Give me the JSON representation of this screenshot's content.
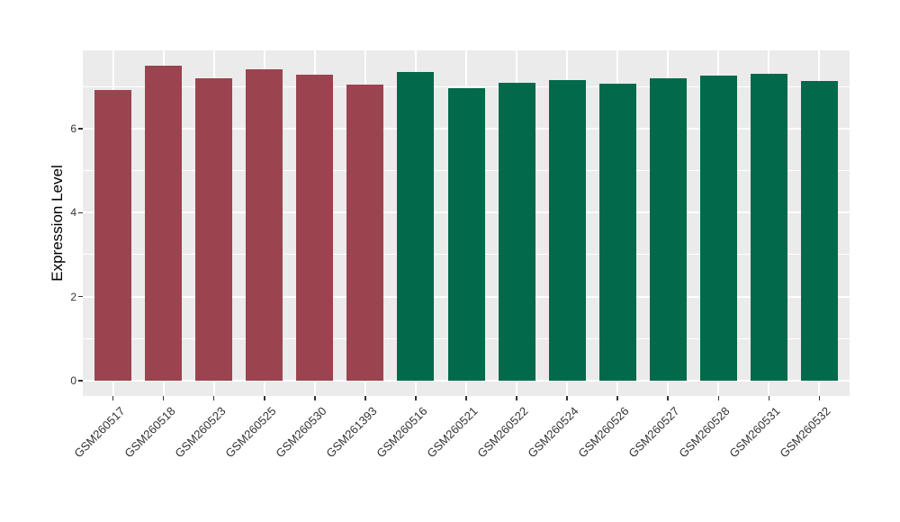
{
  "chart_data": {
    "type": "bar",
    "title": "",
    "xlabel": "",
    "ylabel": "Expression Level",
    "categories": [
      "GSM260517",
      "GSM260518",
      "GSM260523",
      "GSM260525",
      "GSM260530",
      "GSM261393",
      "GSM260516",
      "GSM260521",
      "GSM260522",
      "GSM260524",
      "GSM260526",
      "GSM260527",
      "GSM260528",
      "GSM260531",
      "GSM260532"
    ],
    "values": [
      6.93,
      7.49,
      7.2,
      7.41,
      7.28,
      7.04,
      7.36,
      6.97,
      7.09,
      7.16,
      7.08,
      7.21,
      7.26,
      7.31,
      7.14
    ],
    "colors": [
      "#9B4450",
      "#9B4450",
      "#9B4450",
      "#9B4450",
      "#9B4450",
      "#9B4450",
      "#02694B",
      "#02694B",
      "#02694B",
      "#02694B",
      "#02694B",
      "#02694B",
      "#02694B",
      "#02694B",
      "#02694B"
    ],
    "group_colors": {
      "red_group": "#9B4450",
      "green_group": "#02694B"
    },
    "yticks": [
      0,
      2,
      4,
      6
    ],
    "minor_yticks": [
      1,
      3,
      5,
      7
    ],
    "ylim": [
      0,
      7.86
    ],
    "grid": true,
    "legend": false,
    "panel_bg": "#EBEBEB",
    "grid_color": "#FFFFFF",
    "axis_text_color": "#333333",
    "tick_mark_color": "#333333"
  }
}
